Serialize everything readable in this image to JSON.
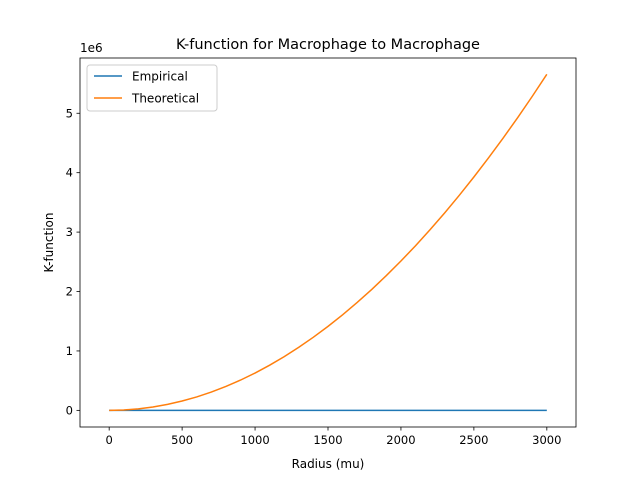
{
  "chart_data": {
    "type": "line",
    "title": "K-function for Macrophage to Macrophage",
    "xlabel": "Radius (mu)",
    "ylabel": "K-function",
    "y_offset_label": "1e6",
    "xlim": [
      -200,
      3200
    ],
    "ylim": [
      -0.28,
      5.93
    ],
    "xticks": [
      0,
      500,
      1000,
      1500,
      2000,
      2500,
      3000
    ],
    "yticks": [
      0,
      1,
      2,
      3,
      4,
      5
    ],
    "grid": false,
    "legend_position": "upper-left",
    "series": [
      {
        "name": "Empirical",
        "color": "#1f77b4",
        "x": [
          0,
          500,
          1000,
          1500,
          2000,
          2500,
          3000
        ],
        "y": [
          0,
          0,
          0,
          0,
          0,
          0,
          0
        ]
      },
      {
        "name": "Theoretical",
        "color": "#ff7f0e",
        "x": [
          0,
          100,
          200,
          300,
          400,
          500,
          600,
          700,
          800,
          900,
          1000,
          1100,
          1200,
          1300,
          1400,
          1500,
          1600,
          1700,
          1800,
          1900,
          2000,
          2100,
          2200,
          2300,
          2400,
          2500,
          2600,
          2700,
          2800,
          2900,
          3000
        ],
        "y": [
          0,
          0.00628,
          0.02513,
          0.05655,
          0.10053,
          0.15708,
          0.22619,
          0.30788,
          0.40212,
          0.50894,
          0.62832,
          0.76027,
          0.90478,
          1.06186,
          1.2315,
          1.41372,
          1.6085,
          1.81584,
          2.03575,
          2.26823,
          2.51327,
          2.77088,
          3.04106,
          3.3238,
          3.61911,
          3.92699,
          4.24743,
          4.58044,
          4.92602,
          5.28416,
          5.65487
        ]
      }
    ]
  }
}
